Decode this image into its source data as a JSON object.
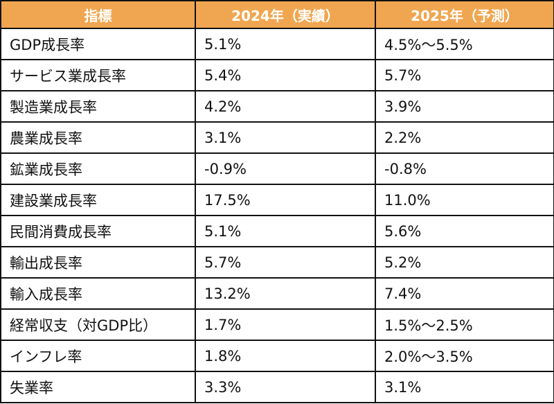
{
  "table": {
    "headers": [
      "指標",
      "2024年（実績）",
      "2025年（予測）"
    ],
    "rows": [
      [
        "GDP成長率",
        "5.1%",
        "4.5%～5.5%"
      ],
      [
        "サービス業成長率",
        "5.4%",
        "5.7%"
      ],
      [
        "製造業成長率",
        "4.2%",
        "3.9%"
      ],
      [
        "農業成長率",
        "3.1%",
        "2.2%"
      ],
      [
        "鉱業成長率",
        "-0.9%",
        "-0.8%"
      ],
      [
        "建設業成長率",
        "17.5%",
        "11.0%"
      ],
      [
        "民間消費成長率",
        "5.1%",
        "5.6%"
      ],
      [
        "輸出成長率",
        "5.7%",
        "5.2%"
      ],
      [
        "輸入成長率",
        "13.2%",
        "7.4%"
      ],
      [
        "経常収支（対GDP比）",
        "1.7%",
        "1.5%～2.5%"
      ],
      [
        "インフレ率",
        "1.8%",
        "2.0%～3.5%"
      ],
      [
        "失業率",
        "3.3%",
        "3.1%"
      ]
    ]
  },
  "colors": {
    "header_bg": "#F0A650",
    "header_text": "#FFFFFF",
    "border": "#111111"
  }
}
